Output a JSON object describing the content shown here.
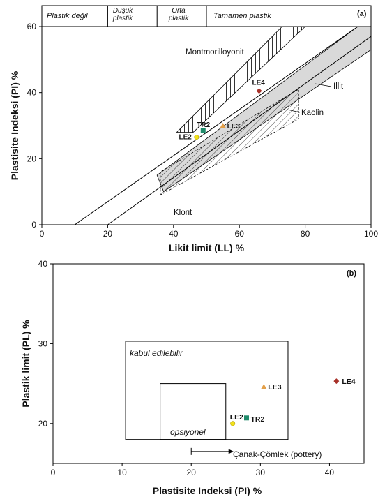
{
  "colors": {
    "axis": "#000000",
    "illite_band": "#d9d9d9",
    "LE4": "#a8322a",
    "LE3": "#e3a04a",
    "TR2": "#1f8a6a",
    "LE2": "#f2e21a"
  },
  "chart_data": [
    {
      "panel": "a",
      "type": "scatter",
      "panel_label": "(a)",
      "xlabel": "Likit limit (LL) %",
      "ylabel": "Plastisite Indeksi (PI) %",
      "xlim": [
        0,
        100
      ],
      "ylim": [
        0,
        60
      ],
      "xticks": [
        "0",
        "20",
        "40",
        "60",
        "80",
        "100"
      ],
      "yticks": [
        "0",
        "20",
        "40",
        "60"
      ],
      "zones": [
        "Plastik değil",
        "Düşük plastik",
        "Orta plastik",
        "Tamamen plastik"
      ],
      "zone_bounds": [
        0,
        20,
        35,
        50,
        100
      ],
      "lines": {
        "upper": [
          [
            10,
            0
          ],
          [
            96,
            60
          ]
        ],
        "lower": [
          [
            20,
            0
          ],
          [
            100,
            57
          ]
        ]
      },
      "regions": {
        "montmorillonite": "Montmorilloyonit",
        "illite": "Illit",
        "kaolinite": "Kaolin",
        "chlorite": "Klorit"
      },
      "montmorillonite_poly": [
        [
          41,
          28
        ],
        [
          46,
          28
        ],
        [
          80,
          60
        ],
        [
          73,
          60
        ]
      ],
      "illite_poly": [
        [
          35,
          15
        ],
        [
          37,
          10
        ],
        [
          100,
          53
        ],
        [
          100,
          60
        ],
        [
          96,
          60
        ]
      ],
      "kaolinite_poly": [
        [
          36,
          9
        ],
        [
          36,
          16
        ],
        [
          78,
          41
        ],
        [
          78,
          32
        ]
      ],
      "points": [
        {
          "label": "LE4",
          "x": 66,
          "y": 40.5,
          "marker": "diamond",
          "color_key": "LE4"
        },
        {
          "label": "LE3",
          "x": 55,
          "y": 30,
          "marker": "triangle",
          "color_key": "LE3"
        },
        {
          "label": "TR2",
          "x": 49,
          "y": 28.5,
          "marker": "square",
          "color_key": "TR2"
        },
        {
          "label": "LE2",
          "x": 47,
          "y": 26.5,
          "marker": "circle",
          "color_key": "LE2"
        }
      ]
    },
    {
      "panel": "b",
      "type": "scatter",
      "panel_label": "(b)",
      "xlabel": "Plastisite Indeksi (PI) %",
      "ylabel": "Plastik limit (PL) %",
      "xlim": [
        0,
        45
      ],
      "ylim": [
        15,
        40
      ],
      "xticks": [
        "0",
        "10",
        "20",
        "30",
        "40"
      ],
      "yticks": [
        "20",
        "30",
        "40"
      ],
      "boxes": [
        {
          "label": "kabul edilebilir",
          "x0": 10.5,
          "x1": 34,
          "y0": 18,
          "y1": 30.3
        },
        {
          "label": "opsiyonel",
          "x0": 15.5,
          "x1": 25,
          "y0": 18,
          "y1": 25
        }
      ],
      "arrow": {
        "label": "Çanak-Çömlek (pottery)",
        "x_from": 20,
        "x_to": 25.5,
        "y": 16.5
      },
      "points": [
        {
          "label": "LE4",
          "x": 41,
          "y": 25.3,
          "marker": "diamond",
          "color_key": "LE4"
        },
        {
          "label": "LE3",
          "x": 30.5,
          "y": 24.6,
          "marker": "triangle",
          "color_key": "LE3"
        },
        {
          "label": "TR2",
          "x": 28,
          "y": 20.7,
          "marker": "square",
          "color_key": "TR2"
        },
        {
          "label": "LE2",
          "x": 26,
          "y": 20,
          "marker": "circle",
          "color_key": "LE2"
        }
      ]
    }
  ]
}
